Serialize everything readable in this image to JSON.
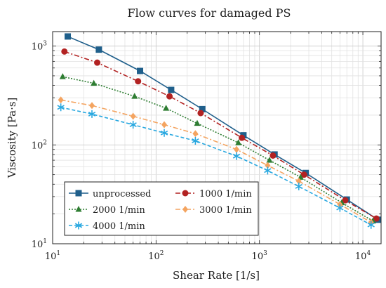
{
  "chart_data": {
    "type": "line",
    "title": "Flow curves for damaged PS",
    "xlabel": "Shear Rate [1/s]",
    "ylabel": "Viscosity [Pa·s]",
    "xscale": "log",
    "yscale": "log",
    "xlim": [
      10,
      15000
    ],
    "ylim": [
      10,
      1400
    ],
    "grid": true,
    "legend_position": "lower-left",
    "x_ticks": [
      {
        "value": 10,
        "base": "10",
        "exp": "1"
      },
      {
        "value": 100,
        "base": "10",
        "exp": "2"
      },
      {
        "value": 1000,
        "base": "10",
        "exp": "3"
      },
      {
        "value": 10000,
        "base": "10",
        "exp": "4"
      }
    ],
    "y_ticks": [
      {
        "value": 10,
        "base": "10",
        "exp": "1"
      },
      {
        "value": 100,
        "base": "10",
        "exp": "2"
      },
      {
        "value": 1000,
        "base": "10",
        "exp": "3"
      }
    ],
    "series": [
      {
        "name": "unprocessed",
        "color": "#1f5f8b",
        "marker": "square",
        "dash": "",
        "x": [
          14,
          28,
          70,
          140,
          280,
          700,
          1400,
          2800,
          7000,
          14000
        ],
        "y": [
          1250,
          920,
          560,
          360,
          230,
          125,
          80,
          52,
          28,
          17.5
        ]
      },
      {
        "name": "1000 1/min",
        "color": "#b22222",
        "marker": "circle",
        "dash": "7 3 2 3",
        "x": [
          13,
          27,
          67,
          135,
          270,
          675,
          1350,
          2700,
          6750,
          13500
        ],
        "y": [
          880,
          680,
          440,
          310,
          210,
          118,
          78,
          50,
          27.5,
          18
        ]
      },
      {
        "name": "2000 1/min",
        "color": "#2e7d32",
        "marker": "triangle",
        "dash": "2 2",
        "x": [
          12.5,
          25,
          62,
          125,
          250,
          625,
          1250,
          2500,
          6250,
          12500
        ],
        "y": [
          490,
          420,
          310,
          235,
          165,
          105,
          70,
          47,
          26,
          17
        ]
      },
      {
        "name": "3000 1/min",
        "color": "#f4a460",
        "marker": "diamond",
        "dash": "7 3 2 3",
        "x": [
          12,
          24,
          60,
          120,
          240,
          600,
          1200,
          2400,
          6000,
          12000
        ],
        "y": [
          285,
          250,
          195,
          160,
          130,
          90,
          62,
          43,
          25,
          16.5
        ]
      },
      {
        "name": "4000 1/min",
        "color": "#29a8e0",
        "marker": "star",
        "dash": "5 3",
        "x": [
          12,
          24,
          60,
          120,
          240,
          600,
          1200,
          2400,
          6000,
          12000
        ],
        "y": [
          240,
          205,
          160,
          132,
          110,
          77,
          55,
          38,
          23,
          15.5
        ]
      }
    ]
  }
}
